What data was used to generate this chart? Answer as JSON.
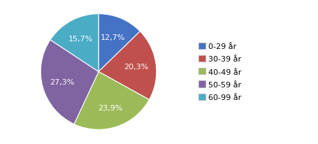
{
  "labels": [
    "0-29 år",
    "30-39 år",
    "40-49 år",
    "50-59 år",
    "60-99 år"
  ],
  "values": [
    12.7,
    20.3,
    23.9,
    27.3,
    15.7
  ],
  "colors": [
    "#4472C4",
    "#C0504D",
    "#9BBB59",
    "#8064A2",
    "#4BACC6"
  ],
  "pct_labels": [
    "12,7%",
    "20,3%",
    "23,9%",
    "27,3%",
    "15,7%"
  ],
  "background_color": "#FFFFFF",
  "legend_fontsize": 8,
  "label_fontsize": 8,
  "figsize": [
    4.55,
    2.07
  ],
  "dpi": 100
}
